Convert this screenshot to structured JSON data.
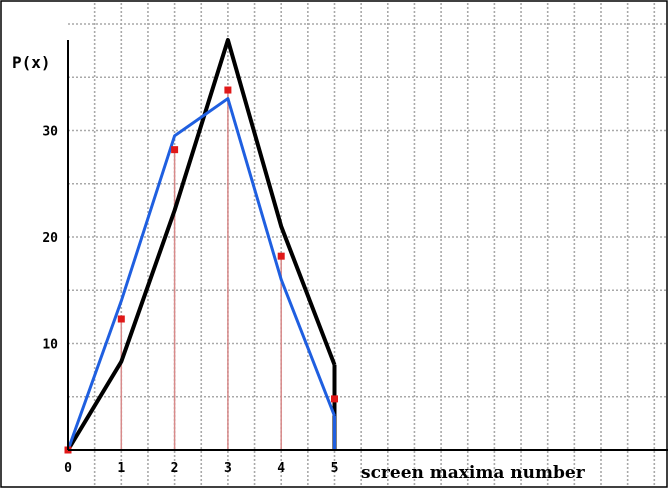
{
  "chart_data": {
    "type": "line",
    "title": "",
    "ylabel": "P(x)",
    "xlabel": "screen maxima number",
    "x": [
      0,
      1,
      2,
      3,
      4,
      5
    ],
    "x_tick_labels": [
      "0",
      "1",
      "2",
      "3",
      "4",
      "5"
    ],
    "y_tick_labels": [
      "10",
      "20",
      "30"
    ],
    "y_ticks": [
      10,
      20,
      30
    ],
    "xlim": [
      0,
      5
    ],
    "ylim": [
      0,
      38
    ],
    "grid": true,
    "series": [
      {
        "values": [
          0,
          8.3,
          22.5,
          38.5,
          21,
          8
        ],
        "color": "#000000"
      },
      {
        "values": [
          0,
          14,
          29.5,
          33,
          16,
          3.2
        ],
        "color": "#1f5fe0"
      },
      {
        "values": [
          0,
          12.3,
          28.2,
          33.8,
          18.2,
          4.8
        ],
        "color": "#e01818",
        "style": "markers"
      }
    ]
  }
}
